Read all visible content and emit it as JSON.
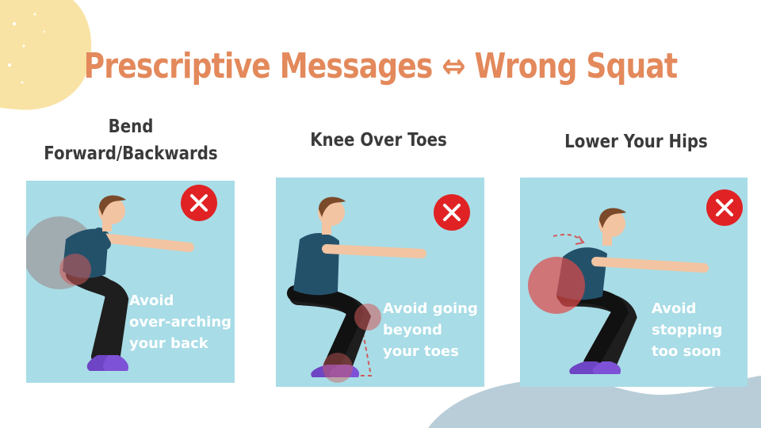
{
  "title": "Prescriptive Messages ⇔ Wrong Squat",
  "colors": {
    "title": "#e3895b",
    "card_bg": "#a8dce6",
    "blob_top_left": "#f9e3a4",
    "blob_bottom_right": "#b8cdd8",
    "shirt": "#24516a",
    "pants": "#1e1e1e",
    "shoes": "#6e45c4",
    "skin": "#f2c4a2",
    "hair": "#7b4a2a",
    "error": "#e02224"
  },
  "panels": [
    {
      "caption_lines": [
        "Bend",
        "Forward/Backwards"
      ],
      "note_lines": [
        "Avoid",
        "over-arching",
        "your back"
      ],
      "icon": "close-icon"
    },
    {
      "caption_lines": [
        "Knee Over Toes"
      ],
      "note_lines": [
        "Avoid going",
        "beyond",
        "your toes"
      ],
      "icon": "close-icon"
    },
    {
      "caption_lines": [
        "Lower Your Hips"
      ],
      "note_lines": [
        "Avoid",
        "stopping",
        "too soon"
      ],
      "icon": "close-icon"
    }
  ]
}
